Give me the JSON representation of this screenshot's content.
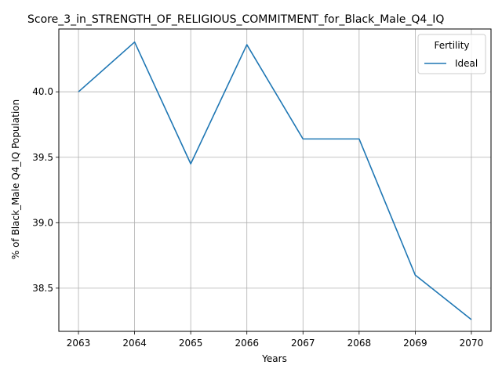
{
  "chart_data": {
    "type": "line",
    "title": "Score_3_in_STRENGTH_OF_RELIGIOUS_COMMITMENT_for_Black_Male_Q4_IQ",
    "xlabel": "Years",
    "ylabel": "% of Black_Male Q4_IQ Population",
    "x": [
      2063,
      2064,
      2065,
      2066,
      2067,
      2068,
      2069,
      2070
    ],
    "x_tick_labels": [
      "2063",
      "2064",
      "2065",
      "2066",
      "2067",
      "2068",
      "2069",
      "2070"
    ],
    "y_ticks": [
      38.5,
      39.0,
      39.5,
      40.0
    ],
    "y_tick_labels": [
      "38.5",
      "39.0",
      "39.5",
      "40.0"
    ],
    "xlim": [
      2062.65,
      2070.35
    ],
    "ylim": [
      38.17,
      40.48
    ],
    "grid": true,
    "legend": {
      "title": "Fertility",
      "position": "top-right"
    },
    "series": [
      {
        "name": "Ideal",
        "color": "#1f77b4",
        "values": [
          40.0,
          40.38,
          39.45,
          40.36,
          39.64,
          39.64,
          38.6,
          38.26
        ]
      }
    ]
  }
}
